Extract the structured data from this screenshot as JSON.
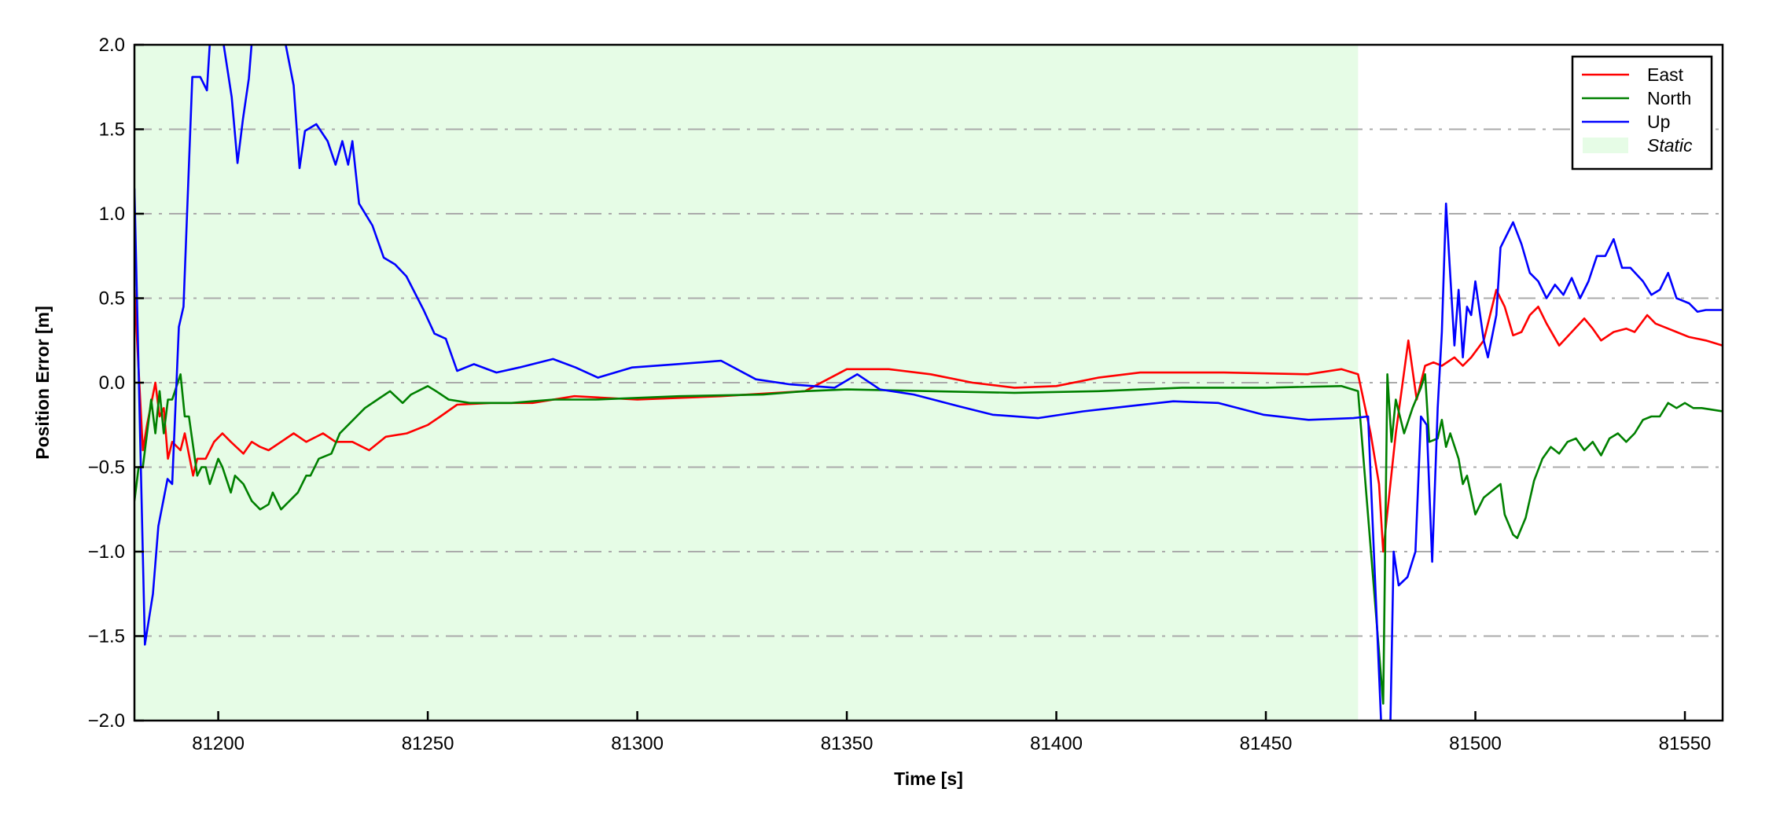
{
  "chart_data": {
    "type": "line",
    "title": "",
    "xlabel": "Time [s]",
    "ylabel": "Position Error [m]",
    "xlim": [
      81180,
      81559
    ],
    "ylim": [
      -2.0,
      2.0
    ],
    "xticks": [
      81200,
      81250,
      81300,
      81350,
      81400,
      81450,
      81500,
      81550
    ],
    "yticks": [
      -2.0,
      -1.5,
      -1.0,
      -0.5,
      0.0,
      0.5,
      1.0,
      1.5,
      2.0
    ],
    "ytick_labels": [
      "−2.0",
      "−1.5",
      "−1.0",
      "−0.5",
      "0.0",
      "0.5",
      "1.0",
      "1.5",
      "2.0"
    ],
    "grid": "horizontal dash-dot",
    "legend_position": "top-right",
    "static_region": {
      "label": "Static",
      "x": [
        81180,
        81472
      ],
      "color": "#e6fce6"
    },
    "series": [
      {
        "name": "East",
        "color": "#ff0000",
        "points": [
          [
            81180,
            0.55
          ],
          [
            81182,
            -0.4
          ],
          [
            81183,
            -0.25
          ],
          [
            81185,
            0.0
          ],
          [
            81186,
            -0.2
          ],
          [
            81187,
            -0.15
          ],
          [
            81188,
            -0.45
          ],
          [
            81189,
            -0.35
          ],
          [
            81191,
            -0.4
          ],
          [
            81192,
            -0.3
          ],
          [
            81194,
            -0.55
          ],
          [
            81195,
            -0.45
          ],
          [
            81197,
            -0.45
          ],
          [
            81199,
            -0.35
          ],
          [
            81201,
            -0.3
          ],
          [
            81203,
            -0.35
          ],
          [
            81206,
            -0.42
          ],
          [
            81208,
            -0.35
          ],
          [
            81210,
            -0.38
          ],
          [
            81212,
            -0.4
          ],
          [
            81215,
            -0.35
          ],
          [
            81218,
            -0.3
          ],
          [
            81221,
            -0.35
          ],
          [
            81225,
            -0.3
          ],
          [
            81228,
            -0.35
          ],
          [
            81232,
            -0.35
          ],
          [
            81236,
            -0.4
          ],
          [
            81240,
            -0.32
          ],
          [
            81245,
            -0.3
          ],
          [
            81250,
            -0.25
          ],
          [
            81253,
            -0.2
          ],
          [
            81257,
            -0.13
          ],
          [
            81265,
            -0.12
          ],
          [
            81275,
            -0.12
          ],
          [
            81285,
            -0.08
          ],
          [
            81300,
            -0.1
          ],
          [
            81320,
            -0.08
          ],
          [
            81340,
            -0.05
          ],
          [
            81350,
            0.08
          ],
          [
            81360,
            0.08
          ],
          [
            81370,
            0.05
          ],
          [
            81380,
            0.0
          ],
          [
            81390,
            -0.03
          ],
          [
            81400,
            -0.02
          ],
          [
            81410,
            0.03
          ],
          [
            81420,
            0.06
          ],
          [
            81440,
            0.06
          ],
          [
            81460,
            0.05
          ],
          [
            81468,
            0.08
          ],
          [
            81472,
            0.05
          ],
          [
            81475,
            -0.3
          ],
          [
            81477,
            -0.6
          ],
          [
            81478,
            -1.0
          ],
          [
            81481,
            -0.3
          ],
          [
            81484,
            0.25
          ],
          [
            81486,
            -0.1
          ],
          [
            81488,
            0.1
          ],
          [
            81490,
            0.12
          ],
          [
            81492,
            0.1
          ],
          [
            81495,
            0.15
          ],
          [
            81497,
            0.1
          ],
          [
            81499,
            0.15
          ],
          [
            81502,
            0.25
          ],
          [
            81505,
            0.55
          ],
          [
            81507,
            0.45
          ],
          [
            81509,
            0.28
          ],
          [
            81511,
            0.3
          ],
          [
            81513,
            0.4
          ],
          [
            81515,
            0.45
          ],
          [
            81517,
            0.35
          ],
          [
            81520,
            0.22
          ],
          [
            81523,
            0.3
          ],
          [
            81526,
            0.38
          ],
          [
            81528,
            0.32
          ],
          [
            81530,
            0.25
          ],
          [
            81533,
            0.3
          ],
          [
            81536,
            0.32
          ],
          [
            81538,
            0.3
          ],
          [
            81541,
            0.4
          ],
          [
            81543,
            0.35
          ],
          [
            81546,
            0.32
          ],
          [
            81548,
            0.3
          ],
          [
            81551,
            0.27
          ],
          [
            81555,
            0.25
          ],
          [
            81559,
            0.22
          ]
        ]
      },
      {
        "name": "North",
        "color": "#008000",
        "points": [
          [
            81180,
            -0.7
          ],
          [
            81181,
            -0.5
          ],
          [
            81182,
            -0.5
          ],
          [
            81184,
            -0.1
          ],
          [
            81185,
            -0.3
          ],
          [
            81186,
            -0.05
          ],
          [
            81187,
            -0.3
          ],
          [
            81188,
            -0.1
          ],
          [
            81189,
            -0.1
          ],
          [
            81191,
            0.05
          ],
          [
            81192,
            -0.2
          ],
          [
            81193,
            -0.2
          ],
          [
            81195,
            -0.55
          ],
          [
            81196,
            -0.5
          ],
          [
            81197,
            -0.5
          ],
          [
            81198,
            -0.6
          ],
          [
            81200,
            -0.45
          ],
          [
            81201,
            -0.5
          ],
          [
            81203,
            -0.65
          ],
          [
            81204,
            -0.55
          ],
          [
            81206,
            -0.6
          ],
          [
            81208,
            -0.7
          ],
          [
            81210,
            -0.75
          ],
          [
            81212,
            -0.72
          ],
          [
            81213,
            -0.65
          ],
          [
            81215,
            -0.75
          ],
          [
            81217,
            -0.7
          ],
          [
            81219,
            -0.65
          ],
          [
            81221,
            -0.55
          ],
          [
            81222,
            -0.55
          ],
          [
            81224,
            -0.45
          ],
          [
            81227,
            -0.42
          ],
          [
            81229,
            -0.3
          ],
          [
            81231,
            -0.25
          ],
          [
            81233,
            -0.2
          ],
          [
            81235,
            -0.15
          ],
          [
            81238,
            -0.1
          ],
          [
            81241,
            -0.05
          ],
          [
            81244,
            -0.12
          ],
          [
            81246,
            -0.07
          ],
          [
            81250,
            -0.02
          ],
          [
            81252,
            -0.05
          ],
          [
            81255,
            -0.1
          ],
          [
            81260,
            -0.12
          ],
          [
            81270,
            -0.12
          ],
          [
            81280,
            -0.1
          ],
          [
            81290,
            -0.1
          ],
          [
            81310,
            -0.08
          ],
          [
            81330,
            -0.07
          ],
          [
            81340,
            -0.05
          ],
          [
            81350,
            -0.04
          ],
          [
            81370,
            -0.05
          ],
          [
            81390,
            -0.06
          ],
          [
            81410,
            -0.05
          ],
          [
            81430,
            -0.03
          ],
          [
            81450,
            -0.03
          ],
          [
            81468,
            -0.02
          ],
          [
            81472,
            -0.05
          ],
          [
            81478,
            -1.9
          ],
          [
            81479,
            0.05
          ],
          [
            81480,
            -0.35
          ],
          [
            81481,
            -0.1
          ],
          [
            81483,
            -0.3
          ],
          [
            81485,
            -0.15
          ],
          [
            81487,
            -0.03
          ],
          [
            81488,
            0.05
          ],
          [
            81489,
            -0.35
          ],
          [
            81491,
            -0.33
          ],
          [
            81492,
            -0.22
          ],
          [
            81493,
            -0.38
          ],
          [
            81494,
            -0.3
          ],
          [
            81496,
            -0.45
          ],
          [
            81497,
            -0.6
          ],
          [
            81498,
            -0.55
          ],
          [
            81500,
            -0.78
          ],
          [
            81502,
            -0.68
          ],
          [
            81505,
            -0.62
          ],
          [
            81506,
            -0.6
          ],
          [
            81507,
            -0.78
          ],
          [
            81509,
            -0.9
          ],
          [
            81510,
            -0.92
          ],
          [
            81512,
            -0.8
          ],
          [
            81514,
            -0.58
          ],
          [
            81516,
            -0.45
          ],
          [
            81518,
            -0.38
          ],
          [
            81520,
            -0.42
          ],
          [
            81522,
            -0.35
          ],
          [
            81524,
            -0.33
          ],
          [
            81526,
            -0.4
          ],
          [
            81528,
            -0.35
          ],
          [
            81530,
            -0.43
          ],
          [
            81532,
            -0.33
          ],
          [
            81534,
            -0.3
          ],
          [
            81536,
            -0.35
          ],
          [
            81538,
            -0.3
          ],
          [
            81540,
            -0.22
          ],
          [
            81542,
            -0.2
          ],
          [
            81544,
            -0.2
          ],
          [
            81546,
            -0.12
          ],
          [
            81548,
            -0.15
          ],
          [
            81550,
            -0.12
          ],
          [
            81552,
            -0.15
          ],
          [
            81554,
            -0.15
          ],
          [
            81559,
            -0.17
          ]
        ]
      },
      {
        "name": "Up",
        "color": "#0000ff",
        "points": [
          [
            81180,
            1.15
          ],
          [
            81182.5,
            -1.55
          ],
          [
            81184.4,
            -1.25
          ],
          [
            81185.7,
            -0.85
          ],
          [
            81187.9,
            -0.57
          ],
          [
            81189,
            -0.6
          ],
          [
            81190.6,
            0.33
          ],
          [
            81191.7,
            0.45
          ],
          [
            81193.8,
            1.81
          ],
          [
            81195.7,
            1.81
          ],
          [
            81197.3,
            1.73
          ],
          [
            81198.7,
            2.3
          ],
          [
            81201.3,
            2.0
          ],
          [
            81203.2,
            1.69
          ],
          [
            81204.6,
            1.3
          ],
          [
            81205.9,
            1.56
          ],
          [
            81207.3,
            1.8
          ],
          [
            81208.6,
            2.2
          ],
          [
            81216.1,
            2.0
          ],
          [
            81218,
            1.76
          ],
          [
            81219.4,
            1.27
          ],
          [
            81220.7,
            1.49
          ],
          [
            81223.4,
            1.53
          ],
          [
            81226.1,
            1.43
          ],
          [
            81228,
            1.29
          ],
          [
            81229.6,
            1.43
          ],
          [
            81231,
            1.29
          ],
          [
            81232,
            1.43
          ],
          [
            81233.6,
            1.06
          ],
          [
            81236.8,
            0.93
          ],
          [
            81239.5,
            0.74
          ],
          [
            81242.2,
            0.7
          ],
          [
            81244.9,
            0.63
          ],
          [
            81249,
            0.43
          ],
          [
            81251.6,
            0.29
          ],
          [
            81254.3,
            0.26
          ],
          [
            81257,
            0.07
          ],
          [
            81261,
            0.11
          ],
          [
            81266.4,
            0.06
          ],
          [
            81271.8,
            0.09
          ],
          [
            81279.9,
            0.14
          ],
          [
            81285.3,
            0.09
          ],
          [
            81290.6,
            0.03
          ],
          [
            81298.7,
            0.09
          ],
          [
            81309.5,
            0.11
          ],
          [
            81320,
            0.13
          ],
          [
            81328.3,
            0.02
          ],
          [
            81336.4,
            -0.01
          ],
          [
            81347.1,
            -0.03
          ],
          [
            81352.5,
            0.05
          ],
          [
            81357.9,
            -0.04
          ],
          [
            81366,
            -0.07
          ],
          [
            81376.8,
            -0.14
          ],
          [
            81384.8,
            -0.19
          ],
          [
            81395.6,
            -0.21
          ],
          [
            81406.4,
            -0.17
          ],
          [
            81417.1,
            -0.14
          ],
          [
            81427.9,
            -0.11
          ],
          [
            81438.6,
            -0.12
          ],
          [
            81449.4,
            -0.19
          ],
          [
            81460.2,
            -0.22
          ],
          [
            81470.9,
            -0.21
          ],
          [
            81474.4,
            -0.2
          ],
          [
            81478,
            -2.3
          ],
          [
            81479.5,
            -2.3
          ],
          [
            81480.5,
            -1.0
          ],
          [
            81481.7,
            -1.2
          ],
          [
            81483.8,
            -1.15
          ],
          [
            81485.7,
            -1.0
          ],
          [
            81487,
            -0.2
          ],
          [
            81488.4,
            -0.25
          ],
          [
            81489.7,
            -1.06
          ],
          [
            81491,
            -0.15
          ],
          [
            81492,
            0.3
          ],
          [
            81493,
            1.06
          ],
          [
            81495,
            0.22
          ],
          [
            81496,
            0.55
          ],
          [
            81497,
            0.15
          ],
          [
            81498,
            0.45
          ],
          [
            81499,
            0.4
          ],
          [
            81500,
            0.6
          ],
          [
            81502,
            0.25
          ],
          [
            81503,
            0.15
          ],
          [
            81505,
            0.4
          ],
          [
            81506,
            0.8
          ],
          [
            81509,
            0.95
          ],
          [
            81511,
            0.82
          ],
          [
            81513,
            0.65
          ],
          [
            81515,
            0.6
          ],
          [
            81517,
            0.5
          ],
          [
            81519,
            0.58
          ],
          [
            81521,
            0.52
          ],
          [
            81523,
            0.62
          ],
          [
            81525,
            0.5
          ],
          [
            81527,
            0.6
          ],
          [
            81529,
            0.75
          ],
          [
            81531,
            0.75
          ],
          [
            81533,
            0.85
          ],
          [
            81535,
            0.68
          ],
          [
            81537,
            0.68
          ],
          [
            81540,
            0.6
          ],
          [
            81542,
            0.52
          ],
          [
            81544,
            0.55
          ],
          [
            81546,
            0.65
          ],
          [
            81548,
            0.5
          ],
          [
            81551,
            0.47
          ],
          [
            81553,
            0.42
          ],
          [
            81555,
            0.43
          ],
          [
            81559,
            0.43
          ]
        ]
      }
    ]
  }
}
